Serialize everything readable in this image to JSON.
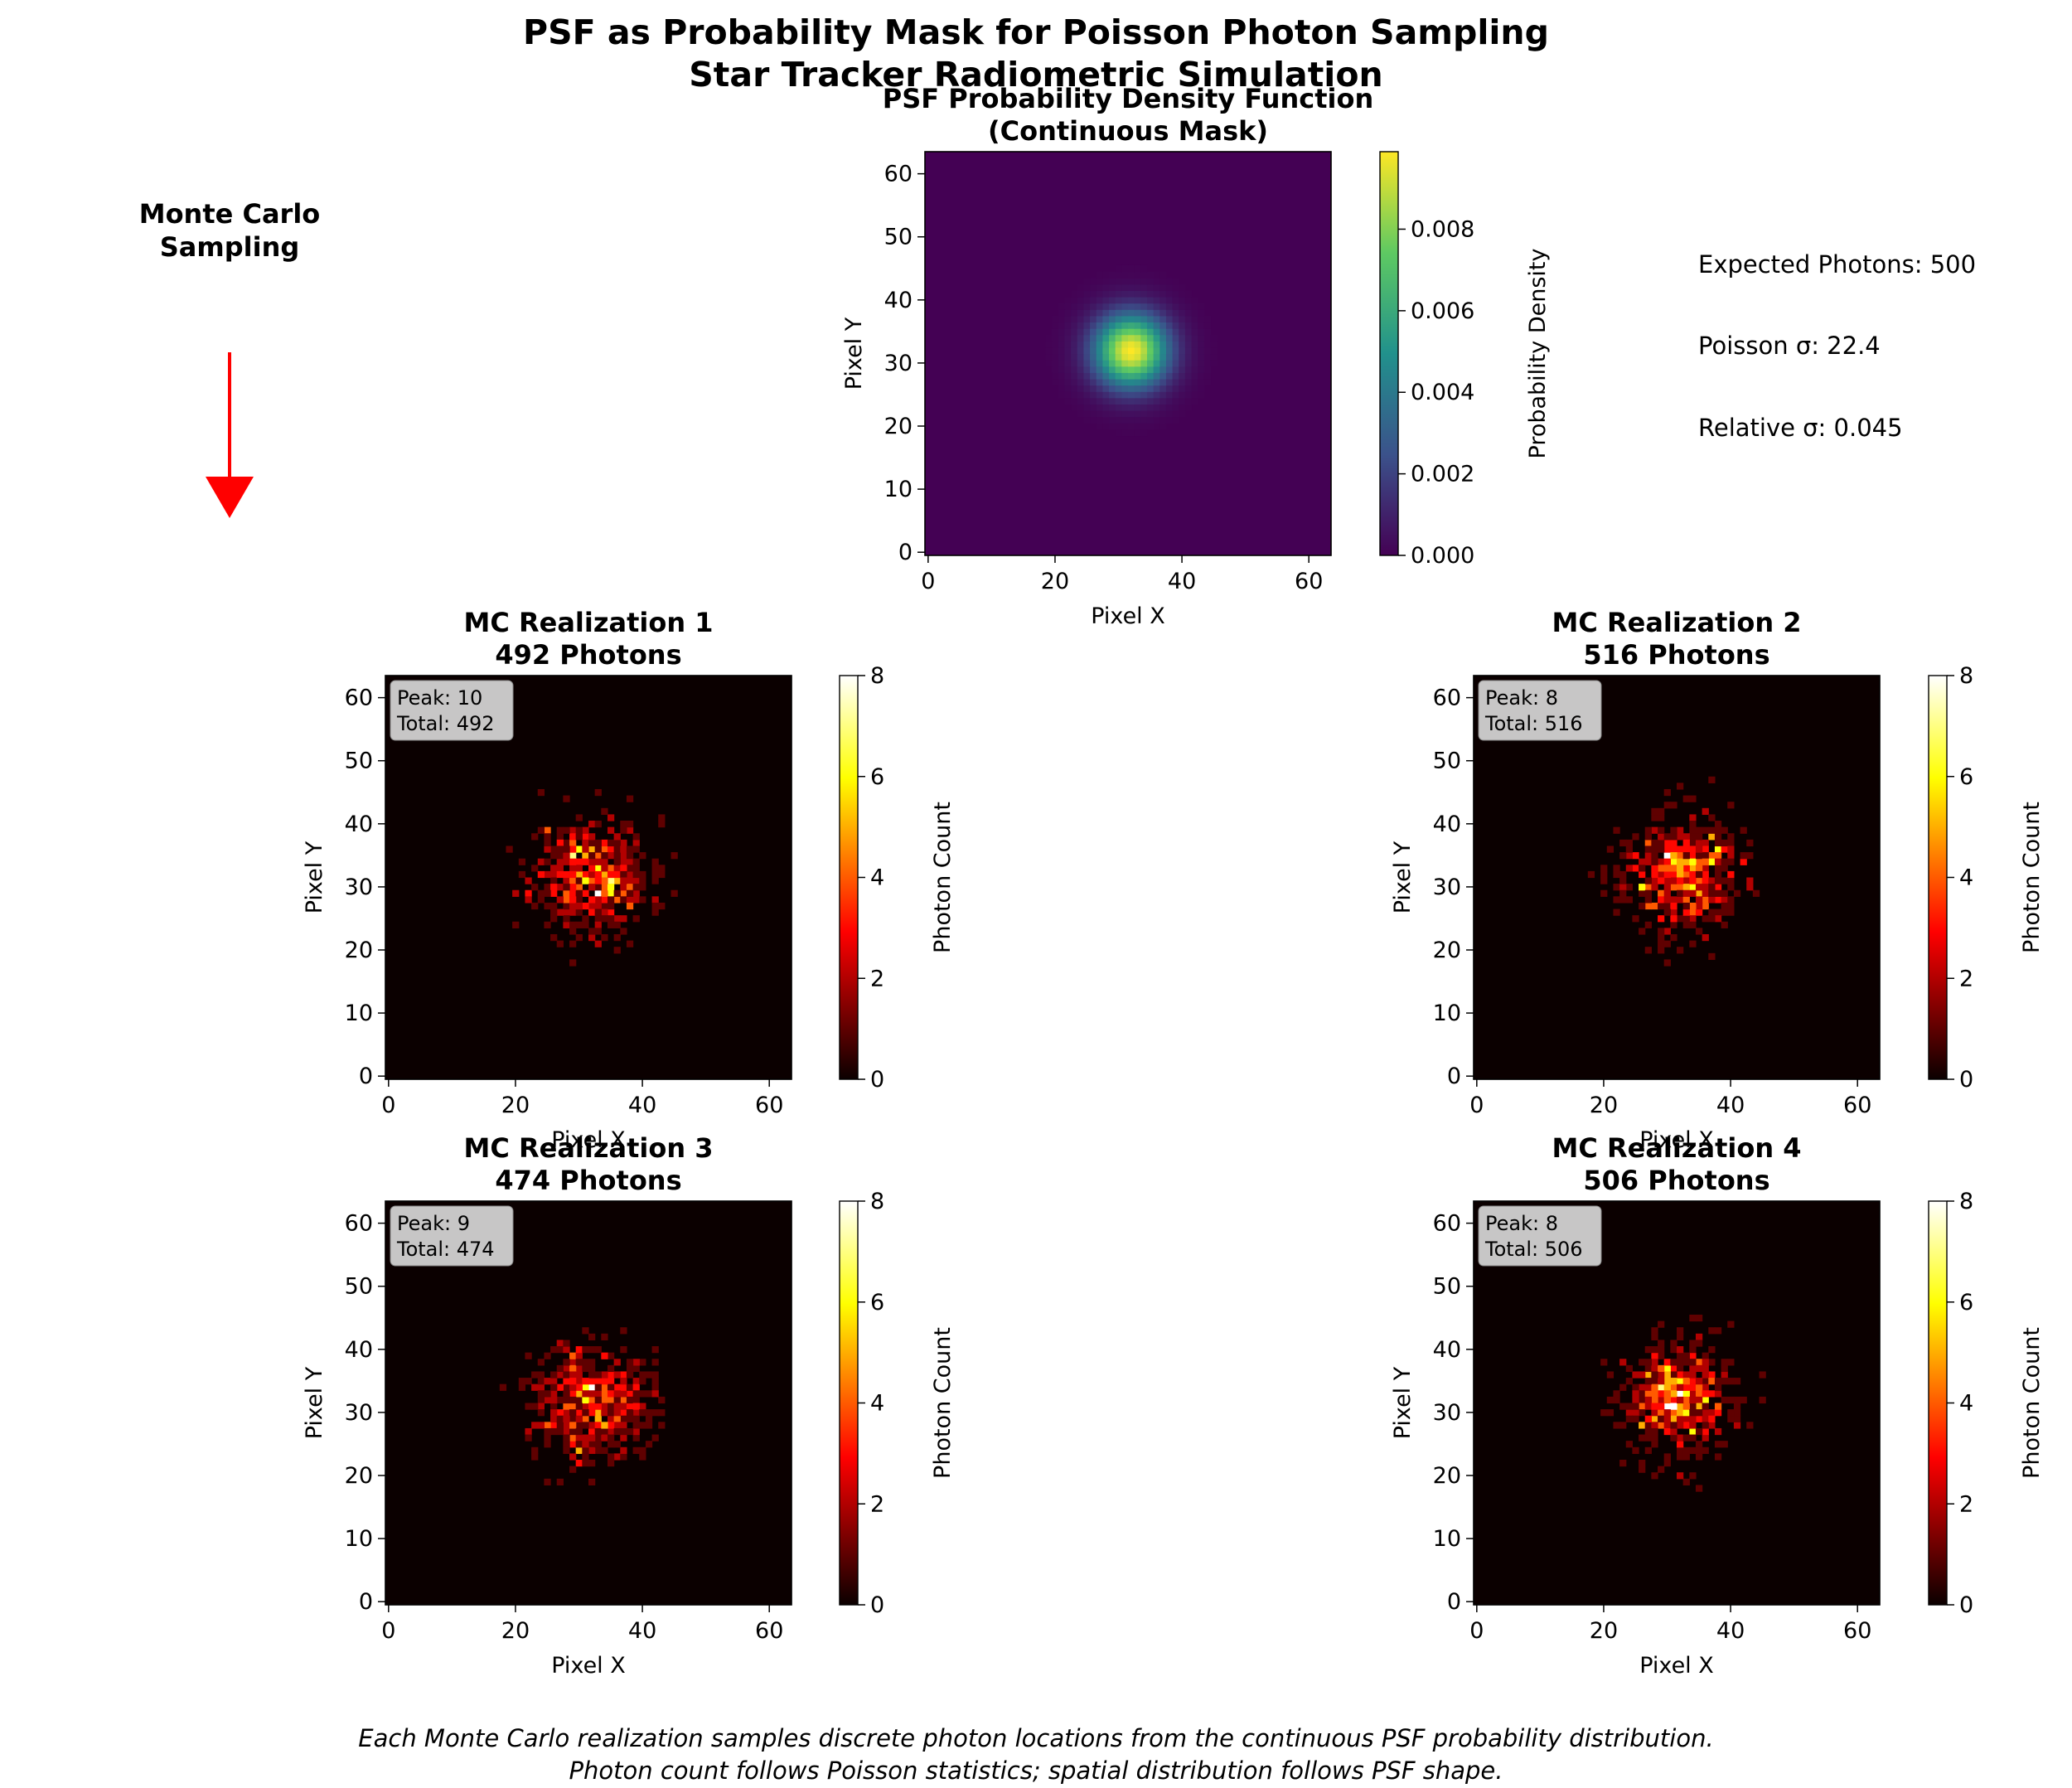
{
  "figure": {
    "title_line1": "PSF as Probability Mask for Poisson Photon Sampling",
    "title_line2": "Star Tracker Radiometric Simulation",
    "caption_line1": "Each Monte Carlo realization samples discrete photon locations from the continuous PSF probability distribution.",
    "caption_line2": "Photon count follows Poisson statistics; spatial distribution follows PSF shape."
  },
  "annotation": {
    "mc_line1": "Monte Carlo",
    "mc_line2": "Sampling",
    "arrow_color": "#ff0000"
  },
  "stats": {
    "expected": "Expected Photons: 500",
    "poisson_sigma": "Poisson σ: 22.4",
    "relative_sigma": "Relative σ: 0.045"
  },
  "chart_data": [
    {
      "type": "heatmap",
      "id": "psf",
      "title_line1": "PSF Probability Density Function",
      "title_line2": "(Continuous Mask)",
      "xlabel": "Pixel X",
      "ylabel": "Pixel Y",
      "grid_size": 64,
      "xlim": [
        0,
        63
      ],
      "ylim": [
        0,
        63
      ],
      "xticks": [
        "0",
        "20",
        "40",
        "60"
      ],
      "yticks": [
        "0",
        "10",
        "20",
        "30",
        "40",
        "50",
        "60"
      ],
      "colormap": "viridis",
      "center": [
        32,
        32
      ],
      "sigma": 4,
      "colorbar_label": "Probability Density",
      "colorbar_ticks": [
        "0.000",
        "0.002",
        "0.004",
        "0.006",
        "0.008"
      ],
      "colorbar_range": [
        0,
        0.0099
      ]
    },
    {
      "type": "heatmap",
      "id": "mc1",
      "title_line1": "MC Realization 1",
      "title_line2": "492 Photons",
      "photons": 492,
      "peak": 10,
      "info_peak": "Peak: 10",
      "info_total": "Total: 492",
      "seed": 11,
      "xlabel": "Pixel X",
      "ylabel": "Pixel Y",
      "grid_size": 64,
      "xticks": [
        "0",
        "20",
        "40",
        "60"
      ],
      "yticks": [
        "0",
        "10",
        "20",
        "30",
        "40",
        "50",
        "60"
      ],
      "colormap": "hot",
      "colorbar_label": "Photon Count",
      "colorbar_ticks": [
        "0",
        "2",
        "4",
        "6",
        "8"
      ],
      "colorbar_range": [
        0,
        8
      ]
    },
    {
      "type": "heatmap",
      "id": "mc2",
      "title_line1": "MC Realization 2",
      "title_line2": "516 Photons",
      "photons": 516,
      "peak": 8,
      "info_peak": "Peak: 8",
      "info_total": "Total: 516",
      "seed": 23,
      "xlabel": "Pixel X",
      "ylabel": "Pixel Y",
      "grid_size": 64,
      "xticks": [
        "0",
        "20",
        "40",
        "60"
      ],
      "yticks": [
        "0",
        "10",
        "20",
        "30",
        "40",
        "50",
        "60"
      ],
      "colormap": "hot",
      "colorbar_label": "Photon Count",
      "colorbar_ticks": [
        "0",
        "2",
        "4",
        "6",
        "8"
      ],
      "colorbar_range": [
        0,
        8
      ]
    },
    {
      "type": "heatmap",
      "id": "mc3",
      "title_line1": "MC Realization 3",
      "title_line2": "474 Photons",
      "photons": 474,
      "peak": 9,
      "info_peak": "Peak: 9",
      "info_total": "Total: 474",
      "seed": 37,
      "xlabel": "Pixel X",
      "ylabel": "Pixel Y",
      "grid_size": 64,
      "xticks": [
        "0",
        "20",
        "40",
        "60"
      ],
      "yticks": [
        "0",
        "10",
        "20",
        "30",
        "40",
        "50",
        "60"
      ],
      "colormap": "hot",
      "colorbar_label": "Photon Count",
      "colorbar_ticks": [
        "0",
        "2",
        "4",
        "6",
        "8"
      ],
      "colorbar_range": [
        0,
        8
      ]
    },
    {
      "type": "heatmap",
      "id": "mc4",
      "title_line1": "MC Realization 4",
      "title_line2": "506 Photons",
      "photons": 506,
      "peak": 8,
      "info_peak": "Peak: 8",
      "info_total": "Total: 506",
      "seed": 53,
      "xlabel": "Pixel X",
      "ylabel": "Pixel Y",
      "grid_size": 64,
      "xticks": [
        "0",
        "20",
        "40",
        "60"
      ],
      "yticks": [
        "0",
        "10",
        "20",
        "30",
        "40",
        "50",
        "60"
      ],
      "colormap": "hot",
      "colorbar_label": "Photon Count",
      "colorbar_ticks": [
        "0",
        "2",
        "4",
        "6",
        "8"
      ],
      "colorbar_range": [
        0,
        8
      ]
    }
  ]
}
